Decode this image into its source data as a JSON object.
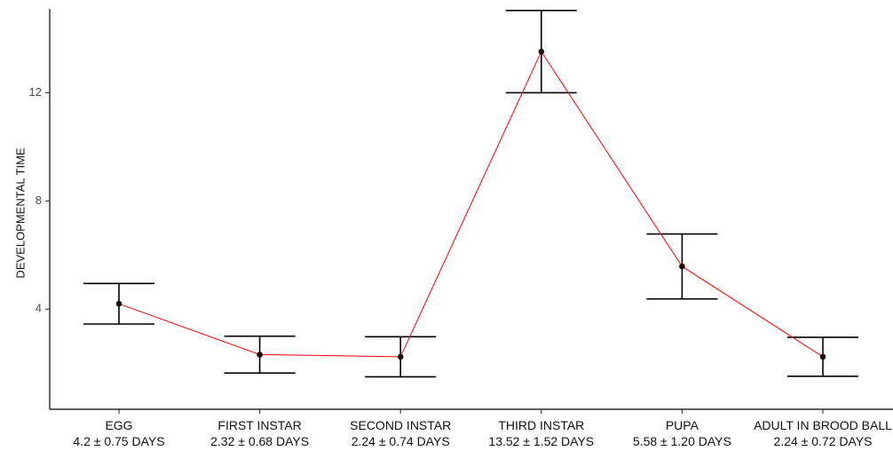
{
  "chart_data": {
    "type": "line",
    "title": "",
    "xlabel": "",
    "ylabel": "DEVELOPMENTAL TIME",
    "ylim": [
      0.3,
      15.1
    ],
    "yticks": [
      4,
      8,
      12
    ],
    "grid": false,
    "legend": "none",
    "line_color": "#ff0000",
    "point_color": "#1a0000",
    "errorbar_color": "#000000",
    "categories": [
      {
        "name": "EGG",
        "subtitle": "4.2 ± 0.75 DAYS"
      },
      {
        "name": "FIRST INSTAR",
        "subtitle": "2.32 ± 0.68 DAYS"
      },
      {
        "name": "SECOND INSTAR",
        "subtitle": "2.24 ± 0.74 DAYS"
      },
      {
        "name": "THIRD INSTAR",
        "subtitle": "13.52 ± 1.52 DAYS"
      },
      {
        "name": "PUPA",
        "subtitle": "5.58 ± 1.20 DAYS"
      },
      {
        "name": "ADULT IN BROOD BALL",
        "subtitle": "2.24 ± 0.72 DAYS"
      }
    ],
    "values": [
      4.2,
      2.32,
      2.24,
      13.52,
      5.58,
      2.24
    ],
    "errors": [
      0.75,
      0.68,
      0.74,
      1.52,
      1.2,
      0.72
    ]
  }
}
